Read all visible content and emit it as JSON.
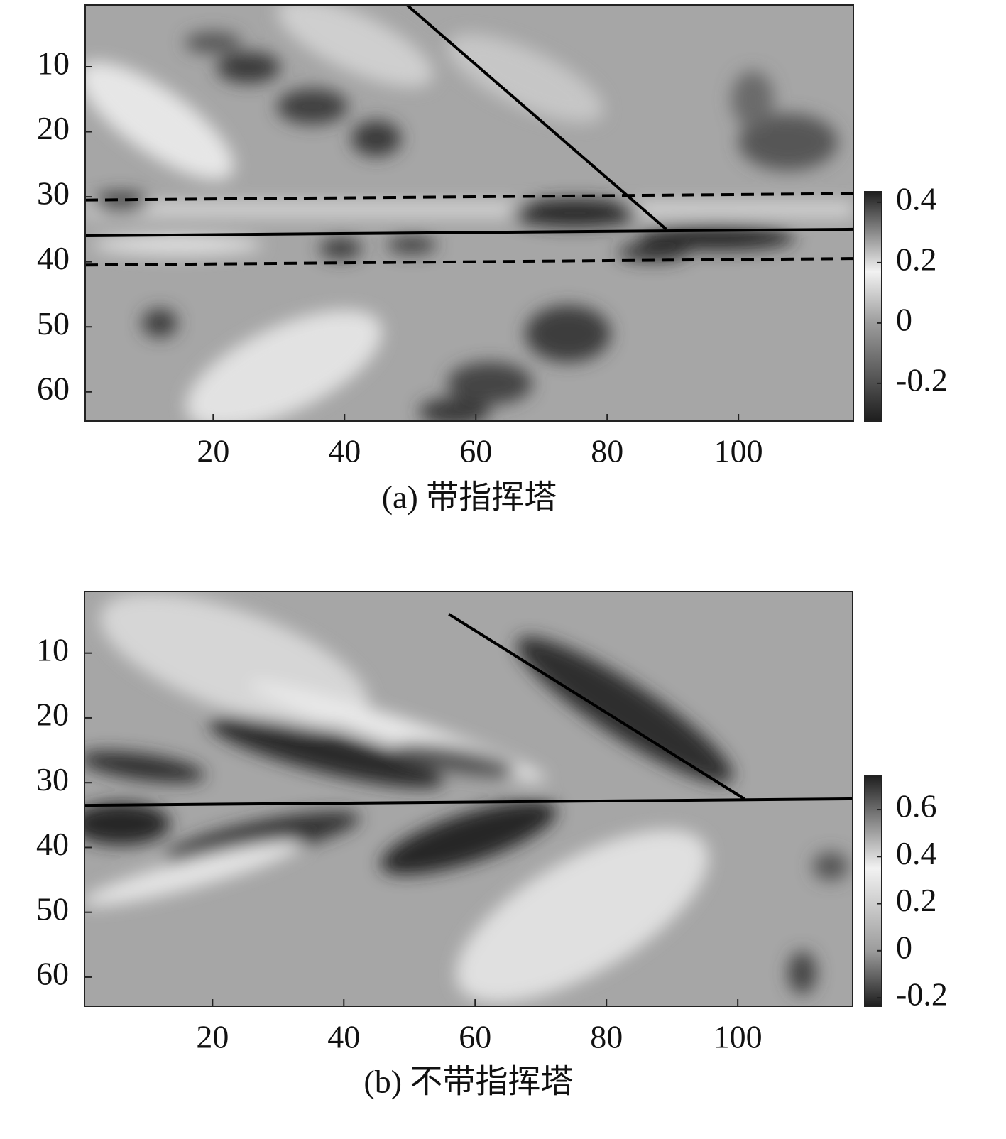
{
  "chart_data": [
    {
      "type": "heatmap",
      "caption": "(a) 带指挥塔",
      "xlim": [
        0.5,
        117.5
      ],
      "ylim": [
        0.5,
        64.5
      ],
      "y_inverted": true,
      "xticks": [
        20,
        40,
        60,
        80,
        100
      ],
      "yticks": [
        10,
        20,
        30,
        40,
        50,
        60
      ],
      "clim": [
        -0.325,
        0.435
      ],
      "cticks": [
        -0.2,
        {
          "value": 0,
          "label": "0"
        },
        0.2,
        0.4
      ],
      "colormap": [
        {
          "value": -0.325,
          "color": "#1e1e1e"
        },
        {
          "value": 0,
          "color": "#9c9c9c"
        },
        {
          "value": 0.17,
          "color": "#f2f2f2"
        },
        {
          "value": 0.435,
          "color": "#1e1e1e"
        }
      ],
      "lines": [
        {
          "x": [
            49.5,
            89
          ],
          "y": [
            0.5,
            35
          ],
          "style": "solid"
        },
        {
          "x": [
            0.5,
            117.5
          ],
          "y": [
            36,
            35
          ],
          "style": "solid"
        },
        {
          "x": [
            0.5,
            117.5
          ],
          "y": [
            30.5,
            29.5
          ],
          "style": "dashed"
        },
        {
          "x": [
            0.5,
            117.5
          ],
          "y": [
            40.5,
            39.5
          ],
          "style": "dashed"
        }
      ]
    },
    {
      "type": "heatmap",
      "caption": "(b) 不带指挥塔",
      "xlim": [
        0.5,
        117.5
      ],
      "ylim": [
        0.5,
        64.5
      ],
      "y_inverted": true,
      "xticks": [
        20,
        40,
        60,
        80,
        100
      ],
      "yticks": [
        10,
        20,
        30,
        40,
        50,
        60
      ],
      "clim": [
        -0.236,
        0.745
      ],
      "cticks": [
        -0.2,
        {
          "value": 0,
          "label": "0"
        },
        0.2,
        0.4,
        0.6
      ],
      "colormap": [
        {
          "value": -0.236,
          "color": "#1e1e1e"
        },
        {
          "value": 0,
          "color": "#9c9c9c"
        },
        {
          "value": 0.35,
          "color": "#f2f2f2"
        },
        {
          "value": 0.745,
          "color": "#1e1e1e"
        }
      ],
      "lines": [
        {
          "x": [
            56,
            101
          ],
          "y": [
            4,
            32.5
          ],
          "style": "solid"
        },
        {
          "x": [
            0.5,
            117.5
          ],
          "y": [
            33.5,
            32.5
          ],
          "style": "solid"
        }
      ]
    }
  ]
}
